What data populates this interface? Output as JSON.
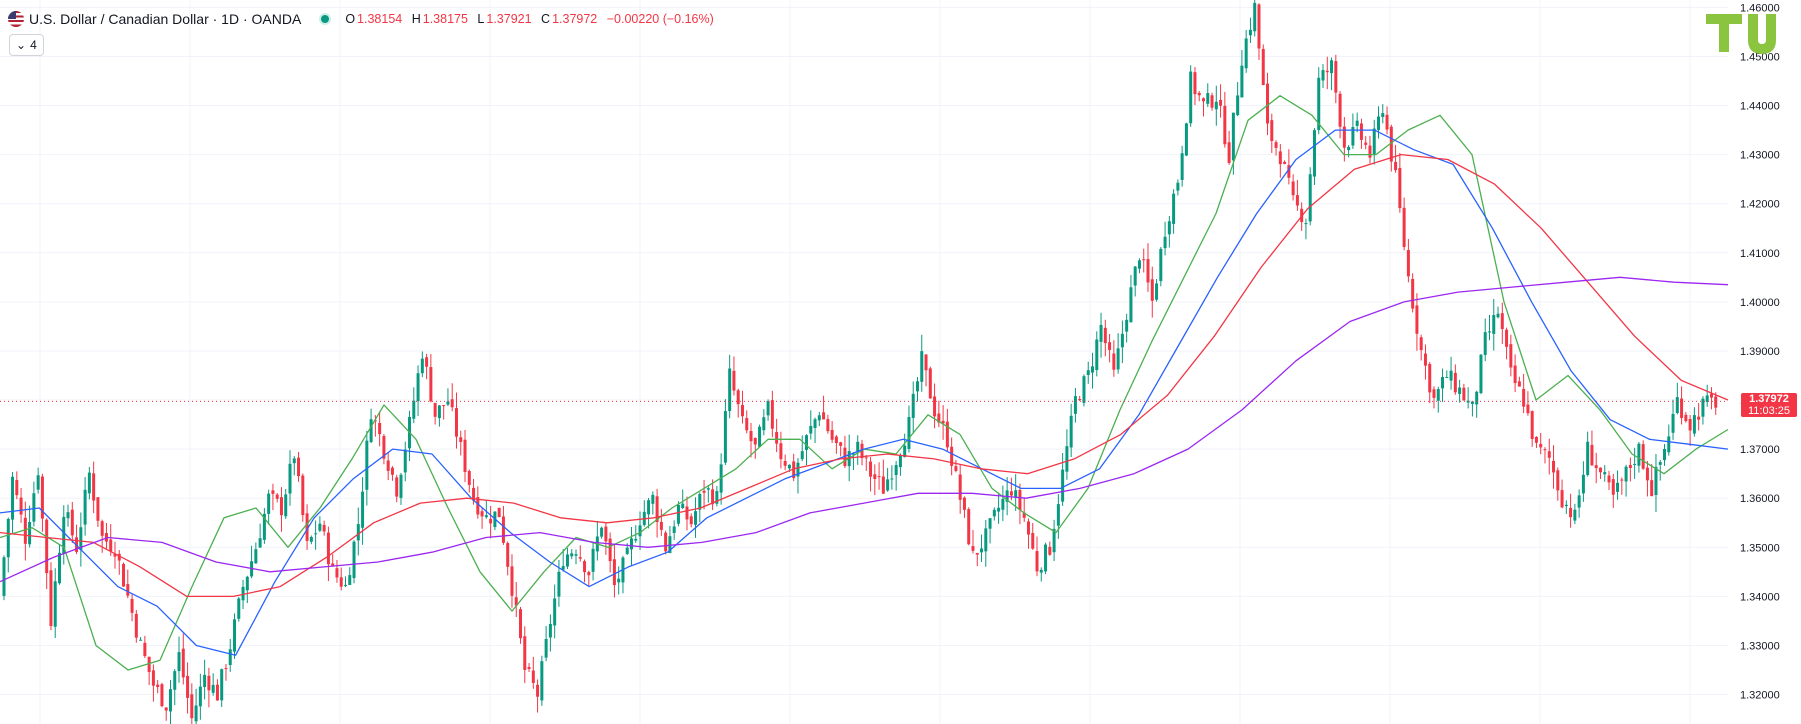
{
  "header": {
    "symbol_title": "U.S. Dollar / Canadian Dollar · 1D · OANDA",
    "ohlc": [
      {
        "key": "O",
        "value": "1.38154"
      },
      {
        "key": "H",
        "value": "1.38175"
      },
      {
        "key": "L",
        "value": "1.37921"
      },
      {
        "key": "C",
        "value": "1.37972"
      }
    ],
    "change": "−0.00220 (−0.16%)",
    "indicators_count": "4"
  },
  "logo_text": "TU",
  "last_price": {
    "price": "1.37972",
    "countdown": "11:03:25"
  },
  "colors": {
    "up": "#089981",
    "down": "#f23645",
    "ma_green": "#4caf50",
    "ma_blue": "#2962ff",
    "ma_red": "#f23645",
    "ma_purple": "#9c27f0",
    "logo_green": "#8bc53f"
  },
  "chart_data": {
    "type": "candlestick",
    "instrument": "USD/CAD",
    "timeframe": "1D",
    "ylim": [
      1.314,
      1.4615
    ],
    "y_ticks": [
      "1.32000",
      "1.33000",
      "1.34000",
      "1.35000",
      "1.36000",
      "1.37000",
      "1.38000",
      "1.39000",
      "1.40000",
      "1.41000",
      "1.42000",
      "1.43000",
      "1.44000",
      "1.45000",
      "1.46000"
    ],
    "price_path": [
      1.34,
      1.364,
      1.352,
      1.366,
      1.335,
      1.358,
      1.35,
      1.365,
      1.352,
      1.35,
      1.34,
      1.33,
      1.322,
      1.318,
      1.328,
      1.315,
      1.324,
      1.32,
      1.33,
      1.342,
      1.35,
      1.36,
      1.358,
      1.369,
      1.35,
      1.355,
      1.345,
      1.342,
      1.355,
      1.378,
      1.37,
      1.362,
      1.375,
      1.39,
      1.377,
      1.38,
      1.37,
      1.36,
      1.356,
      1.357,
      1.342,
      1.325,
      1.32,
      1.335,
      1.348,
      1.35,
      1.345,
      1.355,
      1.342,
      1.348,
      1.356,
      1.36,
      1.35,
      1.358,
      1.355,
      1.362,
      1.36,
      1.385,
      1.375,
      1.37,
      1.378,
      1.369,
      1.365,
      1.372,
      1.378,
      1.372,
      1.368,
      1.37,
      1.365,
      1.362,
      1.368,
      1.375,
      1.388,
      1.378,
      1.372,
      1.36,
      1.348,
      1.352,
      1.358,
      1.362,
      1.356,
      1.346,
      1.35,
      1.365,
      1.38,
      1.385,
      1.395,
      1.385,
      1.398,
      1.41,
      1.4,
      1.415,
      1.425,
      1.445,
      1.44,
      1.442,
      1.43,
      1.45,
      1.46,
      1.435,
      1.43,
      1.42,
      1.417,
      1.445,
      1.448,
      1.432,
      1.435,
      1.43,
      1.44,
      1.425,
      1.405,
      1.39,
      1.38,
      1.385,
      1.382,
      1.378,
      1.392,
      1.398,
      1.385,
      1.38,
      1.37,
      1.368,
      1.36,
      1.356,
      1.37,
      1.365,
      1.36,
      1.365,
      1.37,
      1.362,
      1.37,
      1.38,
      1.375,
      1.379,
      1.3797
    ],
    "moving_averages": [
      {
        "color": "#4caf50",
        "values": [
          1.352,
          1.354,
          1.35,
          1.33,
          1.325,
          1.327,
          1.342,
          1.356,
          1.358,
          1.35,
          1.358,
          1.368,
          1.379,
          1.372,
          1.358,
          1.345,
          1.337,
          1.345,
          1.352,
          1.35,
          1.353,
          1.358,
          1.362,
          1.366,
          1.372,
          1.372,
          1.366,
          1.37,
          1.369,
          1.377,
          1.373,
          1.362,
          1.357,
          1.353,
          1.362,
          1.378,
          1.392,
          1.405,
          1.418,
          1.437,
          1.442,
          1.438,
          1.43,
          1.43,
          1.435,
          1.438,
          1.43,
          1.4,
          1.38,
          1.385,
          1.378,
          1.369,
          1.365,
          1.37,
          1.374
        ]
      },
      {
        "color": "#2962ff",
        "values": [
          1.357,
          1.358,
          1.35,
          1.342,
          1.338,
          1.33,
          1.328,
          1.343,
          1.356,
          1.364,
          1.37,
          1.369,
          1.36,
          1.353,
          1.347,
          1.342,
          1.346,
          1.349,
          1.356,
          1.36,
          1.364,
          1.367,
          1.37,
          1.372,
          1.37,
          1.366,
          1.362,
          1.362,
          1.366,
          1.377,
          1.391,
          1.405,
          1.418,
          1.429,
          1.435,
          1.435,
          1.431,
          1.428,
          1.415,
          1.4,
          1.386,
          1.376,
          1.372,
          1.371,
          1.37
        ]
      },
      {
        "color": "#f23645",
        "values": [
          1.353,
          1.352,
          1.351,
          1.346,
          1.34,
          1.34,
          1.342,
          1.348,
          1.355,
          1.359,
          1.36,
          1.359,
          1.356,
          1.355,
          1.356,
          1.358,
          1.362,
          1.366,
          1.368,
          1.369,
          1.368,
          1.366,
          1.365,
          1.368,
          1.373,
          1.381,
          1.393,
          1.407,
          1.419,
          1.427,
          1.43,
          1.429,
          1.424,
          1.415,
          1.404,
          1.393,
          1.384,
          1.38
        ]
      },
      {
        "color": "#9c27f0",
        "values": [
          1.343,
          1.348,
          1.352,
          1.351,
          1.347,
          1.345,
          1.346,
          1.347,
          1.349,
          1.352,
          1.353,
          1.351,
          1.35,
          1.351,
          1.353,
          1.357,
          1.359,
          1.361,
          1.361,
          1.36,
          1.362,
          1.365,
          1.37,
          1.378,
          1.388,
          1.396,
          1.4,
          1.402,
          1.403,
          1.404,
          1.405,
          1.404,
          1.4035
        ]
      }
    ]
  }
}
